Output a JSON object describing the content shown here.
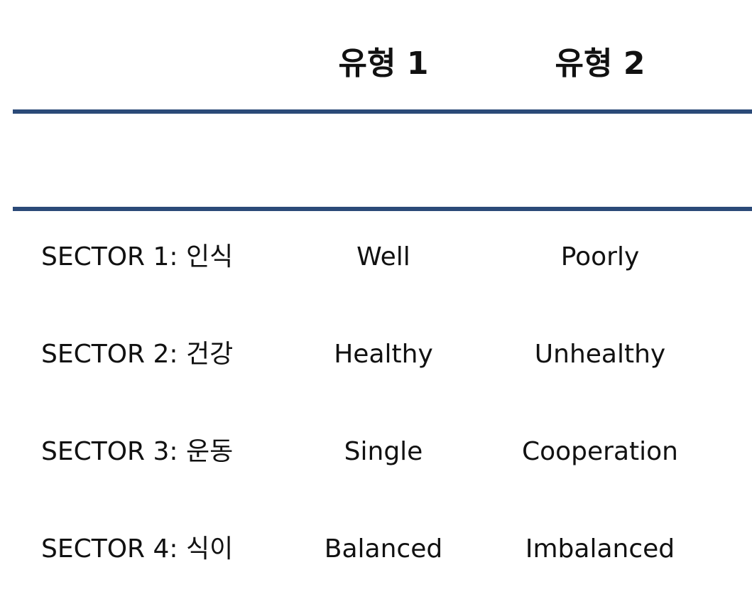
{
  "table": {
    "headers": [
      "유형 1",
      "유형 2"
    ],
    "rows": [
      {
        "label": "SECTOR 1: 인식",
        "type1": "Well",
        "type2": "Poorly"
      },
      {
        "label": "SECTOR 2: 건강",
        "type1": "Healthy",
        "type2": "Unhealthy"
      },
      {
        "label": "SECTOR 3: 운동",
        "type1": "Single",
        "type2": "Cooperation"
      },
      {
        "label": "SECTOR 4: 식이",
        "type1": "Balanced",
        "type2": "Imbalanced"
      }
    ]
  },
  "colors": {
    "rule": "#2b4a78",
    "text": "#111111",
    "background": "#ffffff"
  }
}
